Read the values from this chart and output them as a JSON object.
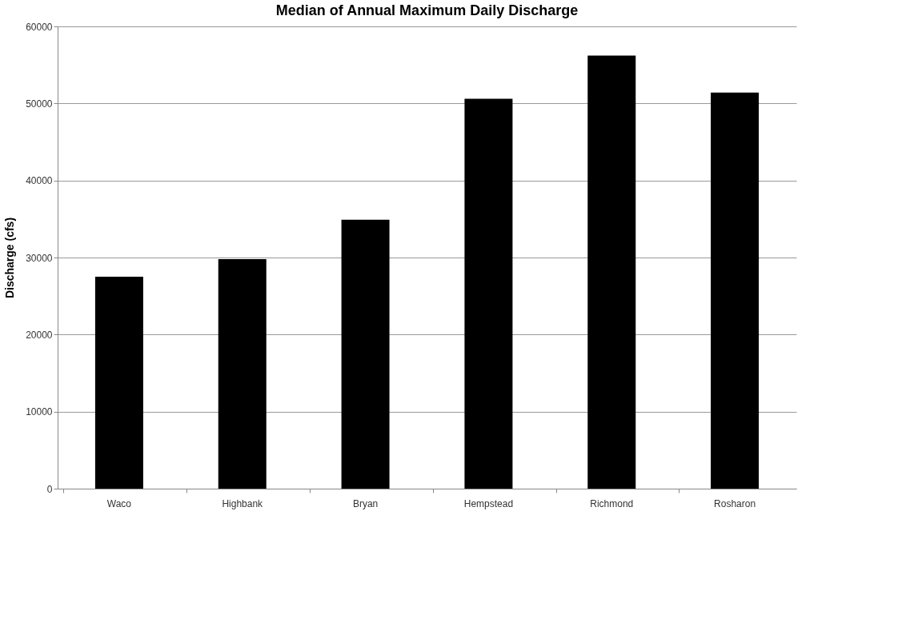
{
  "chart_data": {
    "type": "bar",
    "title": "Median of Annual Maximum Daily Discharge",
    "ylabel": "Discharge (cfs)",
    "categories": [
      "Waco",
      "Highbank",
      "Bryan",
      "Hempstead",
      "Richmond",
      "Rosharon"
    ],
    "values": [
      27500,
      29800,
      34900,
      50600,
      56200,
      51400
    ],
    "color": "#000000",
    "ylim": [
      0,
      60000
    ],
    "yticks": [
      0,
      10000,
      20000,
      30000,
      40000,
      50000,
      60000
    ],
    "grid": "y"
  }
}
